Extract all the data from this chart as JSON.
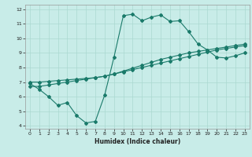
{
  "xlabel": "Humidex (Indice chaleur)",
  "background_color": "#c8ece8",
  "grid_color": "#aad8d0",
  "line_color": "#1a7a6a",
  "xlim": [
    -0.5,
    23.5
  ],
  "ylim": [
    3.8,
    12.3
  ],
  "xticks": [
    0,
    1,
    2,
    3,
    4,
    5,
    6,
    7,
    8,
    9,
    10,
    11,
    12,
    13,
    14,
    15,
    16,
    17,
    18,
    19,
    20,
    21,
    22,
    23
  ],
  "yticks": [
    4,
    5,
    6,
    7,
    8,
    9,
    10,
    11,
    12
  ],
  "line1_x": [
    0,
    1,
    2,
    3,
    4,
    5,
    6,
    7,
    8,
    9,
    10,
    11,
    12,
    13,
    14,
    15,
    16,
    17,
    18,
    19,
    20,
    21,
    22,
    23
  ],
  "line1_y": [
    6.9,
    6.5,
    6.0,
    5.4,
    5.6,
    4.7,
    4.2,
    4.3,
    6.1,
    8.7,
    11.55,
    11.65,
    11.2,
    11.45,
    11.6,
    11.15,
    11.2,
    10.45,
    9.6,
    9.2,
    8.7,
    8.65,
    8.8,
    9.0
  ],
  "line2_x": [
    0,
    1,
    2,
    3,
    4,
    5,
    6,
    7,
    8,
    9,
    10,
    11,
    12,
    13,
    14,
    15,
    16,
    17,
    18,
    19,
    20,
    21,
    22,
    23
  ],
  "line2_y": [
    6.7,
    6.7,
    6.8,
    6.9,
    7.0,
    7.1,
    7.2,
    7.3,
    7.4,
    7.55,
    7.7,
    7.85,
    8.0,
    8.15,
    8.3,
    8.45,
    8.6,
    8.75,
    8.9,
    9.05,
    9.2,
    9.3,
    9.4,
    9.5
  ],
  "line3_x": [
    0,
    1,
    2,
    3,
    4,
    5,
    6,
    7,
    8,
    9,
    10,
    11,
    12,
    13,
    14,
    15,
    16,
    17,
    18,
    19,
    20,
    21,
    22,
    23
  ],
  "line3_y": [
    7.0,
    7.0,
    7.05,
    7.1,
    7.15,
    7.2,
    7.25,
    7.3,
    7.4,
    7.55,
    7.75,
    7.95,
    8.15,
    8.35,
    8.55,
    8.7,
    8.85,
    9.0,
    9.1,
    9.2,
    9.3,
    9.4,
    9.5,
    9.6
  ]
}
